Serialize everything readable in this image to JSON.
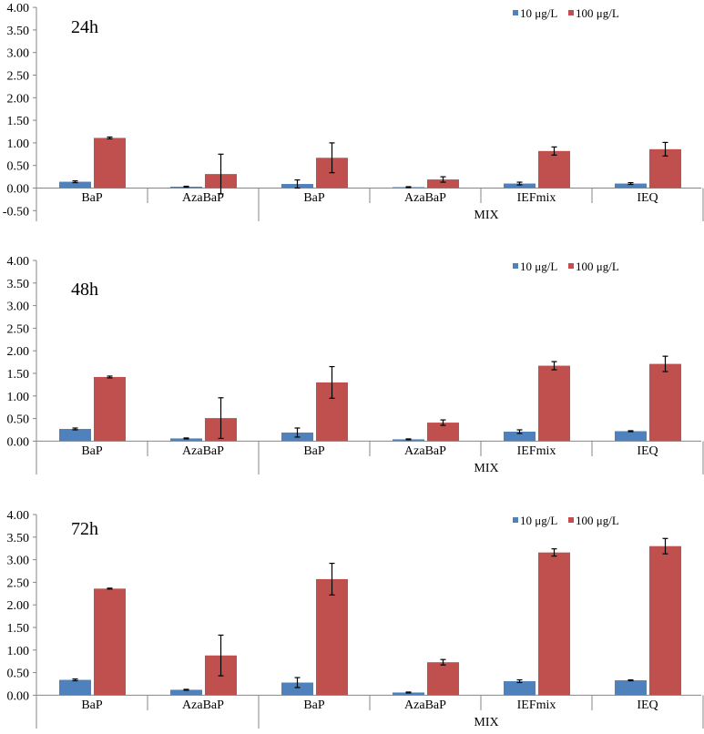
{
  "chart_data": [
    {
      "type": "bar",
      "title": "24h",
      "categories": [
        "BaP",
        "AzaBaP",
        "BaP",
        "AzaBaP",
        "IEFmix",
        "IEQ"
      ],
      "group_label": "MIX",
      "series": [
        {
          "name": "10 μg/L",
          "values": [
            0.14,
            0.03,
            0.09,
            0.02,
            0.1,
            0.1
          ],
          "errors": [
            0.02,
            0.01,
            0.09,
            0.01,
            0.03,
            0.02
          ]
        },
        {
          "name": "100 μg/L",
          "values": [
            1.11,
            0.31,
            0.67,
            0.19,
            0.82,
            0.86
          ],
          "errors": [
            0.02,
            0.44,
            0.33,
            0.06,
            0.09,
            0.15
          ]
        }
      ],
      "ylim": [
        -0.5,
        4.0
      ],
      "yticks": [
        "-0.50",
        "0.00",
        "0.50",
        "1.00",
        "1.50",
        "2.00",
        "2.50",
        "3.00",
        "3.50",
        "4.00"
      ],
      "legend": "top-right"
    },
    {
      "type": "bar",
      "title": "48h",
      "categories": [
        "BaP",
        "AzaBaP",
        "BaP",
        "AzaBaP",
        "IEFmix",
        "IEQ"
      ],
      "group_label": "MIX",
      "series": [
        {
          "name": "10 μg/L",
          "values": [
            0.27,
            0.06,
            0.19,
            0.04,
            0.21,
            0.22
          ],
          "errors": [
            0.02,
            0.01,
            0.1,
            0.01,
            0.04,
            0.01
          ]
        },
        {
          "name": "100 μg/L",
          "values": [
            1.42,
            0.51,
            1.3,
            0.41,
            1.67,
            1.71
          ],
          "errors": [
            0.02,
            0.45,
            0.35,
            0.06,
            0.09,
            0.17
          ]
        }
      ],
      "ylim": [
        0,
        4.0
      ],
      "yticks": [
        "0.00",
        "0.50",
        "1.00",
        "1.50",
        "2.00",
        "2.50",
        "3.00",
        "3.50",
        "4.00"
      ],
      "legend": "top-right"
    },
    {
      "type": "bar",
      "title": "72h",
      "categories": [
        "BaP",
        "AzaBaP",
        "BaP",
        "AzaBaP",
        "IEFmix",
        "IEQ"
      ],
      "group_label": "MIX",
      "series": [
        {
          "name": "10 μg/L",
          "values": [
            0.34,
            0.12,
            0.28,
            0.06,
            0.31,
            0.33
          ],
          "errors": [
            0.02,
            0.01,
            0.11,
            0.01,
            0.03,
            0.01
          ]
        },
        {
          "name": "100 μg/L",
          "values": [
            2.36,
            0.88,
            2.57,
            0.73,
            3.16,
            3.3
          ],
          "errors": [
            0.01,
            0.45,
            0.35,
            0.06,
            0.08,
            0.17
          ]
        }
      ],
      "ylim": [
        0,
        4.0
      ],
      "yticks": [
        "0.00",
        "0.50",
        "1.00",
        "1.50",
        "2.00",
        "2.50",
        "3.00",
        "3.50",
        "4.00"
      ],
      "legend": "top-right"
    }
  ],
  "colors": {
    "series_10": "#4F81BD",
    "series_100": "#C0504D",
    "axis": "#868686",
    "text": "#000000"
  }
}
